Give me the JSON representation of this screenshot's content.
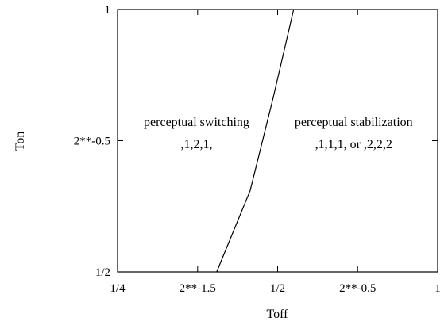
{
  "chart_data": {
    "type": "line",
    "xlabel": "Toff",
    "ylabel": "Ton",
    "x_scale": "log2",
    "y_scale": "log2",
    "xlim": [
      0.25,
      1
    ],
    "ylim": [
      0.5,
      1
    ],
    "x_ticks": [
      {
        "value": 0.25,
        "label": "1/4"
      },
      {
        "value": 0.3536,
        "label": "2**-1.5"
      },
      {
        "value": 0.5,
        "label": "1/2"
      },
      {
        "value": 0.7071,
        "label": "2**-0.5"
      },
      {
        "value": 1,
        "label": "1"
      }
    ],
    "y_ticks": [
      {
        "value": 0.5,
        "label": "1/2"
      },
      {
        "value": 0.7071,
        "label": "2**-0.5"
      },
      {
        "value": 1,
        "label": "1"
      }
    ],
    "series": [
      {
        "color": "#000000",
        "points": [
          {
            "x": 0.384,
            "y": 0.5
          },
          {
            "x": 0.444,
            "y": 0.62
          },
          {
            "x": 0.49,
            "y": 0.79
          },
          {
            "x": 0.536,
            "y": 1.0
          }
        ]
      }
    ],
    "annotations": [
      {
        "id": "switching-label",
        "text": "perceptual switching",
        "x": 0.352,
        "y": 0.735
      },
      {
        "id": "switching-pattern",
        "text": ",1,2,1,",
        "x": 0.352,
        "y": 0.693
      },
      {
        "id": "stabilization-label",
        "text": "perceptual stabilization",
        "x": 0.695,
        "y": 0.735
      },
      {
        "id": "stabilization-pattern",
        "text": ",1,1,1, or ,2,2,2",
        "x": 0.695,
        "y": 0.693
      }
    ],
    "grid": false,
    "legend": "none"
  }
}
